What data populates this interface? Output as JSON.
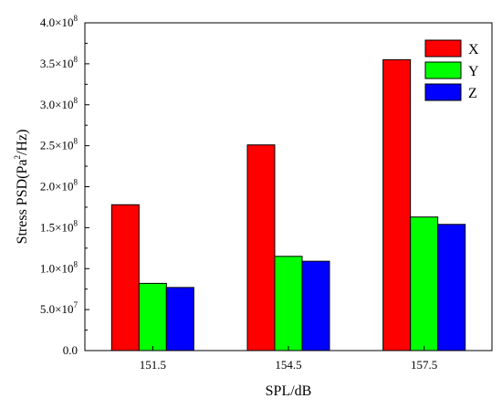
{
  "chart_data": {
    "type": "bar",
    "categories": [
      "151.5",
      "154.5",
      "157.5"
    ],
    "series": [
      {
        "name": "X",
        "values": [
          178000000,
          251000000,
          355000000
        ],
        "color": "#ff0000"
      },
      {
        "name": "Y",
        "values": [
          82000000,
          115000000,
          163000000
        ],
        "color": "#00ff00"
      },
      {
        "name": "Z",
        "values": [
          77000000,
          109000000,
          154000000
        ],
        "color": "#0000ff"
      }
    ],
    "xlabel": "SPL/dB",
    "ylabel": {
      "main": "Stress PSD(Pa",
      "sup": "2",
      "rest": "/Hz)"
    },
    "ylim": [
      0,
      400000000
    ],
    "yticks": [
      {
        "value": 0,
        "label": "0.0",
        "exp": ""
      },
      {
        "value": 50000000,
        "label": "5.0×10",
        "exp": "7"
      },
      {
        "value": 100000000,
        "label": "1.0×10",
        "exp": "8"
      },
      {
        "value": 150000000,
        "label": "1.5×10",
        "exp": "8"
      },
      {
        "value": 200000000,
        "label": "2.0×10",
        "exp": "8"
      },
      {
        "value": 250000000,
        "label": "2.5×10",
        "exp": "8"
      },
      {
        "value": 300000000,
        "label": "3.0×10",
        "exp": "8"
      },
      {
        "value": 350000000,
        "label": "3.5×10",
        "exp": "8"
      },
      {
        "value": 400000000,
        "label": "4.0×10",
        "exp": "8"
      }
    ],
    "grid": false,
    "legend_position": "top-right"
  }
}
